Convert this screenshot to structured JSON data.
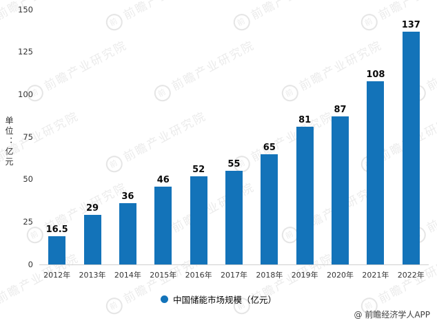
{
  "chart_data": {
    "type": "bar",
    "categories": [
      "2012年",
      "2013年",
      "2014年",
      "2015年",
      "2016年",
      "2017年",
      "2018年",
      "2019年",
      "2020年",
      "2021年",
      "2022年"
    ],
    "values": [
      16.5,
      29,
      36,
      46,
      52,
      55,
      65,
      81,
      87,
      108,
      137
    ],
    "title": "",
    "xlabel": "",
    "ylabel": "单位：亿元",
    "ylim": [
      0,
      150
    ],
    "yticks": [
      0,
      25,
      50,
      75,
      100,
      125,
      150
    ],
    "legend": "中国储能市场规模（亿元）",
    "legend_position": "bottom",
    "grid": false,
    "bar_color": "#1373b9"
  },
  "watermark": {
    "text": "前瞻产业研究院",
    "circle_glyph": "前"
  },
  "attribution": "@ 前瞻经济学人APP"
}
